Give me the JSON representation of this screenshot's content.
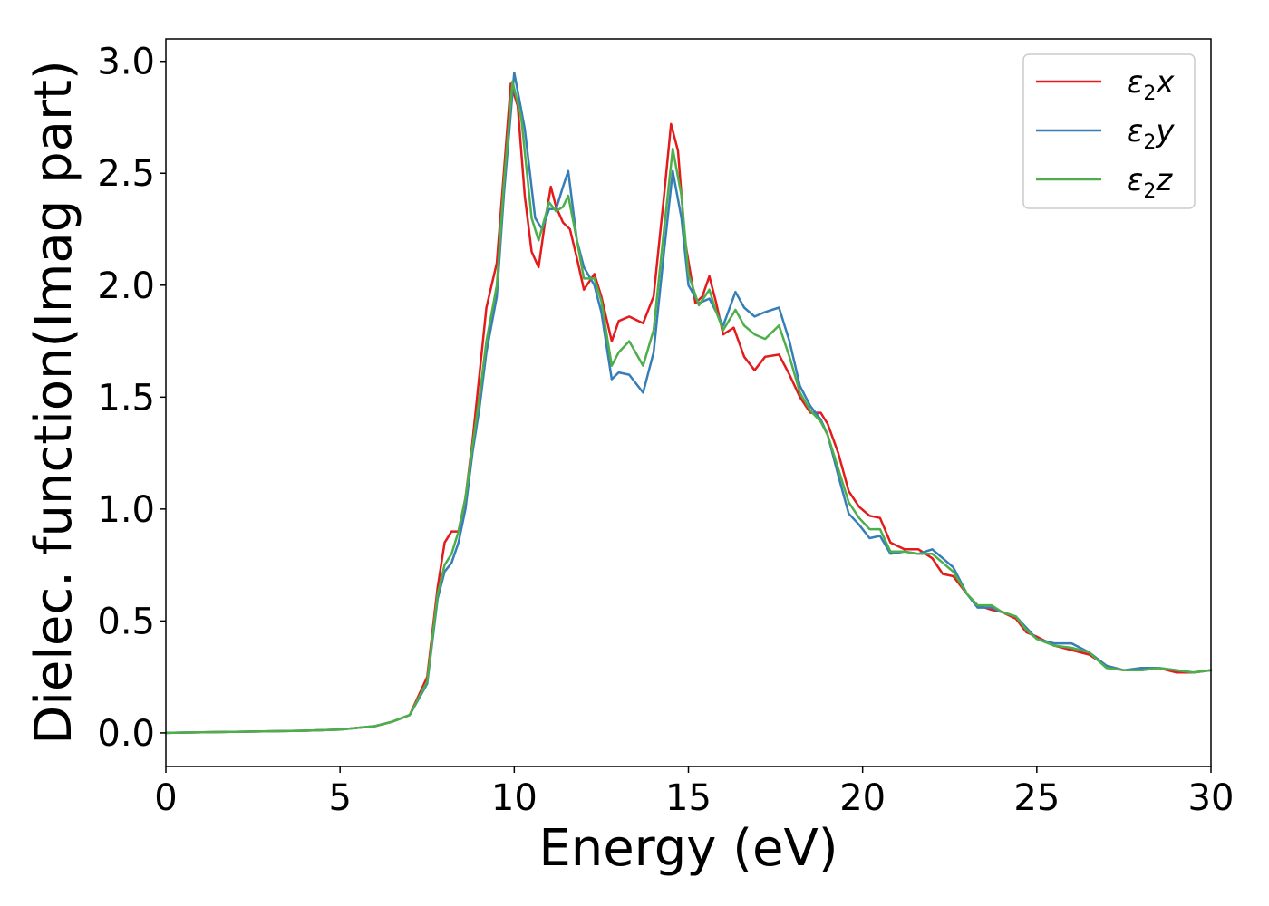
{
  "chart_data": {
    "type": "line",
    "title": "",
    "xlabel": "Energy (eV)",
    "ylabel": "Dielec. function(Imag part)",
    "xlim": [
      0,
      30
    ],
    "ylim": [
      -0.15,
      3.1
    ],
    "xticks": [
      0,
      5,
      10,
      15,
      20,
      25,
      30
    ],
    "xtick_labels": [
      "0",
      "5",
      "10",
      "15",
      "20",
      "25",
      "30"
    ],
    "yticks": [
      0.0,
      0.5,
      1.0,
      1.5,
      2.0,
      2.5,
      3.0
    ],
    "ytick_labels": [
      "0.0",
      "0.5",
      "1.0",
      "1.5",
      "2.0",
      "2.5",
      "3.0"
    ],
    "grid": false,
    "legend_position": "top-right",
    "series": [
      {
        "name": "ε2x",
        "legend_symbol": "ε",
        "legend_sub": "2",
        "legend_var": "x",
        "color": "#e41a1c",
        "points": [
          [
            0,
            0.0
          ],
          [
            2,
            0.005
          ],
          [
            4,
            0.01
          ],
          [
            5,
            0.015
          ],
          [
            6,
            0.03
          ],
          [
            6.5,
            0.05
          ],
          [
            7,
            0.08
          ],
          [
            7.5,
            0.25
          ],
          [
            7.8,
            0.65
          ],
          [
            8.0,
            0.85
          ],
          [
            8.2,
            0.9
          ],
          [
            8.4,
            0.9
          ],
          [
            8.6,
            1.05
          ],
          [
            8.8,
            1.3
          ],
          [
            9.0,
            1.6
          ],
          [
            9.2,
            1.9
          ],
          [
            9.5,
            2.1
          ],
          [
            9.7,
            2.5
          ],
          [
            9.9,
            2.9
          ],
          [
            10.1,
            2.8
          ],
          [
            10.3,
            2.4
          ],
          [
            10.5,
            2.15
          ],
          [
            10.7,
            2.08
          ],
          [
            10.9,
            2.3
          ],
          [
            11.05,
            2.44
          ],
          [
            11.2,
            2.35
          ],
          [
            11.4,
            2.28
          ],
          [
            11.6,
            2.25
          ],
          [
            11.8,
            2.12
          ],
          [
            12.0,
            1.98
          ],
          [
            12.3,
            2.05
          ],
          [
            12.5,
            1.95
          ],
          [
            12.8,
            1.75
          ],
          [
            13.0,
            1.84
          ],
          [
            13.3,
            1.86
          ],
          [
            13.7,
            1.83
          ],
          [
            14.0,
            1.95
          ],
          [
            14.3,
            2.4
          ],
          [
            14.5,
            2.72
          ],
          [
            14.7,
            2.6
          ],
          [
            14.9,
            2.2
          ],
          [
            15.2,
            1.92
          ],
          [
            15.4,
            1.95
          ],
          [
            15.6,
            2.04
          ],
          [
            15.8,
            1.92
          ],
          [
            16.0,
            1.78
          ],
          [
            16.3,
            1.81
          ],
          [
            16.6,
            1.68
          ],
          [
            16.9,
            1.62
          ],
          [
            17.2,
            1.68
          ],
          [
            17.6,
            1.69
          ],
          [
            17.9,
            1.6
          ],
          [
            18.2,
            1.5
          ],
          [
            18.5,
            1.43
          ],
          [
            18.8,
            1.43
          ],
          [
            19.0,
            1.38
          ],
          [
            19.3,
            1.25
          ],
          [
            19.6,
            1.08
          ],
          [
            19.9,
            1.01
          ],
          [
            20.2,
            0.97
          ],
          [
            20.5,
            0.96
          ],
          [
            20.8,
            0.85
          ],
          [
            21.2,
            0.82
          ],
          [
            21.6,
            0.82
          ],
          [
            22.0,
            0.78
          ],
          [
            22.3,
            0.71
          ],
          [
            22.6,
            0.7
          ],
          [
            23.0,
            0.62
          ],
          [
            23.3,
            0.57
          ],
          [
            23.7,
            0.55
          ],
          [
            24.0,
            0.54
          ],
          [
            24.4,
            0.51
          ],
          [
            24.7,
            0.45
          ],
          [
            25.0,
            0.43
          ],
          [
            25.5,
            0.39
          ],
          [
            26.0,
            0.37
          ],
          [
            26.5,
            0.35
          ],
          [
            27.0,
            0.3
          ],
          [
            27.5,
            0.28
          ],
          [
            28.0,
            0.28
          ],
          [
            28.5,
            0.29
          ],
          [
            29.0,
            0.27
          ],
          [
            29.5,
            0.27
          ],
          [
            30.0,
            0.28
          ]
        ]
      },
      {
        "name": "ε2y",
        "legend_symbol": "ε",
        "legend_sub": "2",
        "legend_var": "y",
        "color": "#377eb8",
        "points": [
          [
            0,
            0.0
          ],
          [
            2,
            0.005
          ],
          [
            4,
            0.01
          ],
          [
            5,
            0.015
          ],
          [
            6,
            0.03
          ],
          [
            6.5,
            0.05
          ],
          [
            7,
            0.08
          ],
          [
            7.5,
            0.22
          ],
          [
            7.8,
            0.6
          ],
          [
            8.0,
            0.72
          ],
          [
            8.2,
            0.76
          ],
          [
            8.4,
            0.85
          ],
          [
            8.6,
            1.0
          ],
          [
            8.8,
            1.25
          ],
          [
            9.0,
            1.45
          ],
          [
            9.2,
            1.7
          ],
          [
            9.5,
            1.95
          ],
          [
            9.7,
            2.4
          ],
          [
            10.0,
            2.95
          ],
          [
            10.3,
            2.7
          ],
          [
            10.6,
            2.3
          ],
          [
            10.8,
            2.25
          ],
          [
            11.0,
            2.34
          ],
          [
            11.2,
            2.34
          ],
          [
            11.4,
            2.44
          ],
          [
            11.55,
            2.51
          ],
          [
            11.8,
            2.2
          ],
          [
            12.0,
            2.08
          ],
          [
            12.3,
            2.0
          ],
          [
            12.5,
            1.88
          ],
          [
            12.8,
            1.58
          ],
          [
            13.0,
            1.61
          ],
          [
            13.3,
            1.6
          ],
          [
            13.7,
            1.52
          ],
          [
            14.0,
            1.7
          ],
          [
            14.3,
            2.15
          ],
          [
            14.55,
            2.51
          ],
          [
            14.8,
            2.3
          ],
          [
            15.0,
            2.0
          ],
          [
            15.3,
            1.92
          ],
          [
            15.6,
            1.94
          ],
          [
            15.8,
            1.88
          ],
          [
            16.0,
            1.82
          ],
          [
            16.35,
            1.97
          ],
          [
            16.6,
            1.9
          ],
          [
            16.9,
            1.86
          ],
          [
            17.2,
            1.88
          ],
          [
            17.6,
            1.9
          ],
          [
            17.9,
            1.75
          ],
          [
            18.2,
            1.55
          ],
          [
            18.5,
            1.46
          ],
          [
            18.8,
            1.4
          ],
          [
            19.0,
            1.33
          ],
          [
            19.3,
            1.15
          ],
          [
            19.6,
            0.98
          ],
          [
            19.9,
            0.93
          ],
          [
            20.2,
            0.87
          ],
          [
            20.5,
            0.88
          ],
          [
            20.8,
            0.8
          ],
          [
            21.2,
            0.81
          ],
          [
            21.6,
            0.8
          ],
          [
            22.0,
            0.82
          ],
          [
            22.3,
            0.78
          ],
          [
            22.6,
            0.74
          ],
          [
            23.0,
            0.62
          ],
          [
            23.3,
            0.56
          ],
          [
            23.7,
            0.56
          ],
          [
            24.0,
            0.54
          ],
          [
            24.4,
            0.52
          ],
          [
            24.7,
            0.47
          ],
          [
            25.0,
            0.42
          ],
          [
            25.5,
            0.4
          ],
          [
            26.0,
            0.4
          ],
          [
            26.5,
            0.36
          ],
          [
            27.0,
            0.3
          ],
          [
            27.5,
            0.28
          ],
          [
            28.0,
            0.29
          ],
          [
            28.5,
            0.29
          ],
          [
            29.0,
            0.28
          ],
          [
            29.5,
            0.27
          ],
          [
            30.0,
            0.28
          ]
        ]
      },
      {
        "name": "ε2z",
        "legend_symbol": "ε",
        "legend_sub": "2",
        "legend_var": "z",
        "color": "#4daf4a",
        "points": [
          [
            0,
            0.0
          ],
          [
            2,
            0.005
          ],
          [
            4,
            0.01
          ],
          [
            5,
            0.015
          ],
          [
            6,
            0.03
          ],
          [
            6.5,
            0.05
          ],
          [
            7,
            0.08
          ],
          [
            7.5,
            0.23
          ],
          [
            7.8,
            0.62
          ],
          [
            8.0,
            0.75
          ],
          [
            8.2,
            0.8
          ],
          [
            8.4,
            0.9
          ],
          [
            8.6,
            1.05
          ],
          [
            8.8,
            1.28
          ],
          [
            9.0,
            1.5
          ],
          [
            9.2,
            1.75
          ],
          [
            9.5,
            2.0
          ],
          [
            9.7,
            2.45
          ],
          [
            9.95,
            2.91
          ],
          [
            10.2,
            2.75
          ],
          [
            10.5,
            2.3
          ],
          [
            10.7,
            2.2
          ],
          [
            11.0,
            2.37
          ],
          [
            11.2,
            2.33
          ],
          [
            11.4,
            2.35
          ],
          [
            11.55,
            2.4
          ],
          [
            11.8,
            2.2
          ],
          [
            12.0,
            2.03
          ],
          [
            12.3,
            2.03
          ],
          [
            12.5,
            1.93
          ],
          [
            12.8,
            1.64
          ],
          [
            13.0,
            1.7
          ],
          [
            13.3,
            1.75
          ],
          [
            13.7,
            1.64
          ],
          [
            14.0,
            1.8
          ],
          [
            14.3,
            2.25
          ],
          [
            14.55,
            2.61
          ],
          [
            14.8,
            2.4
          ],
          [
            15.0,
            2.05
          ],
          [
            15.3,
            1.91
          ],
          [
            15.6,
            1.98
          ],
          [
            15.8,
            1.88
          ],
          [
            16.0,
            1.8
          ],
          [
            16.35,
            1.89
          ],
          [
            16.6,
            1.82
          ],
          [
            16.9,
            1.78
          ],
          [
            17.2,
            1.76
          ],
          [
            17.6,
            1.82
          ],
          [
            17.9,
            1.68
          ],
          [
            18.2,
            1.52
          ],
          [
            18.5,
            1.44
          ],
          [
            18.8,
            1.39
          ],
          [
            19.0,
            1.33
          ],
          [
            19.3,
            1.18
          ],
          [
            19.6,
            1.03
          ],
          [
            19.9,
            0.96
          ],
          [
            20.2,
            0.91
          ],
          [
            20.5,
            0.91
          ],
          [
            20.8,
            0.81
          ],
          [
            21.2,
            0.81
          ],
          [
            21.6,
            0.8
          ],
          [
            22.0,
            0.8
          ],
          [
            22.3,
            0.76
          ],
          [
            22.6,
            0.72
          ],
          [
            23.0,
            0.62
          ],
          [
            23.3,
            0.57
          ],
          [
            23.7,
            0.57
          ],
          [
            24.0,
            0.54
          ],
          [
            24.4,
            0.52
          ],
          [
            24.7,
            0.46
          ],
          [
            25.0,
            0.42
          ],
          [
            25.5,
            0.39
          ],
          [
            26.0,
            0.38
          ],
          [
            26.5,
            0.36
          ],
          [
            27.0,
            0.29
          ],
          [
            27.5,
            0.28
          ],
          [
            28.0,
            0.28
          ],
          [
            28.5,
            0.29
          ],
          [
            29.0,
            0.28
          ],
          [
            29.5,
            0.27
          ],
          [
            30.0,
            0.28
          ]
        ]
      }
    ]
  }
}
